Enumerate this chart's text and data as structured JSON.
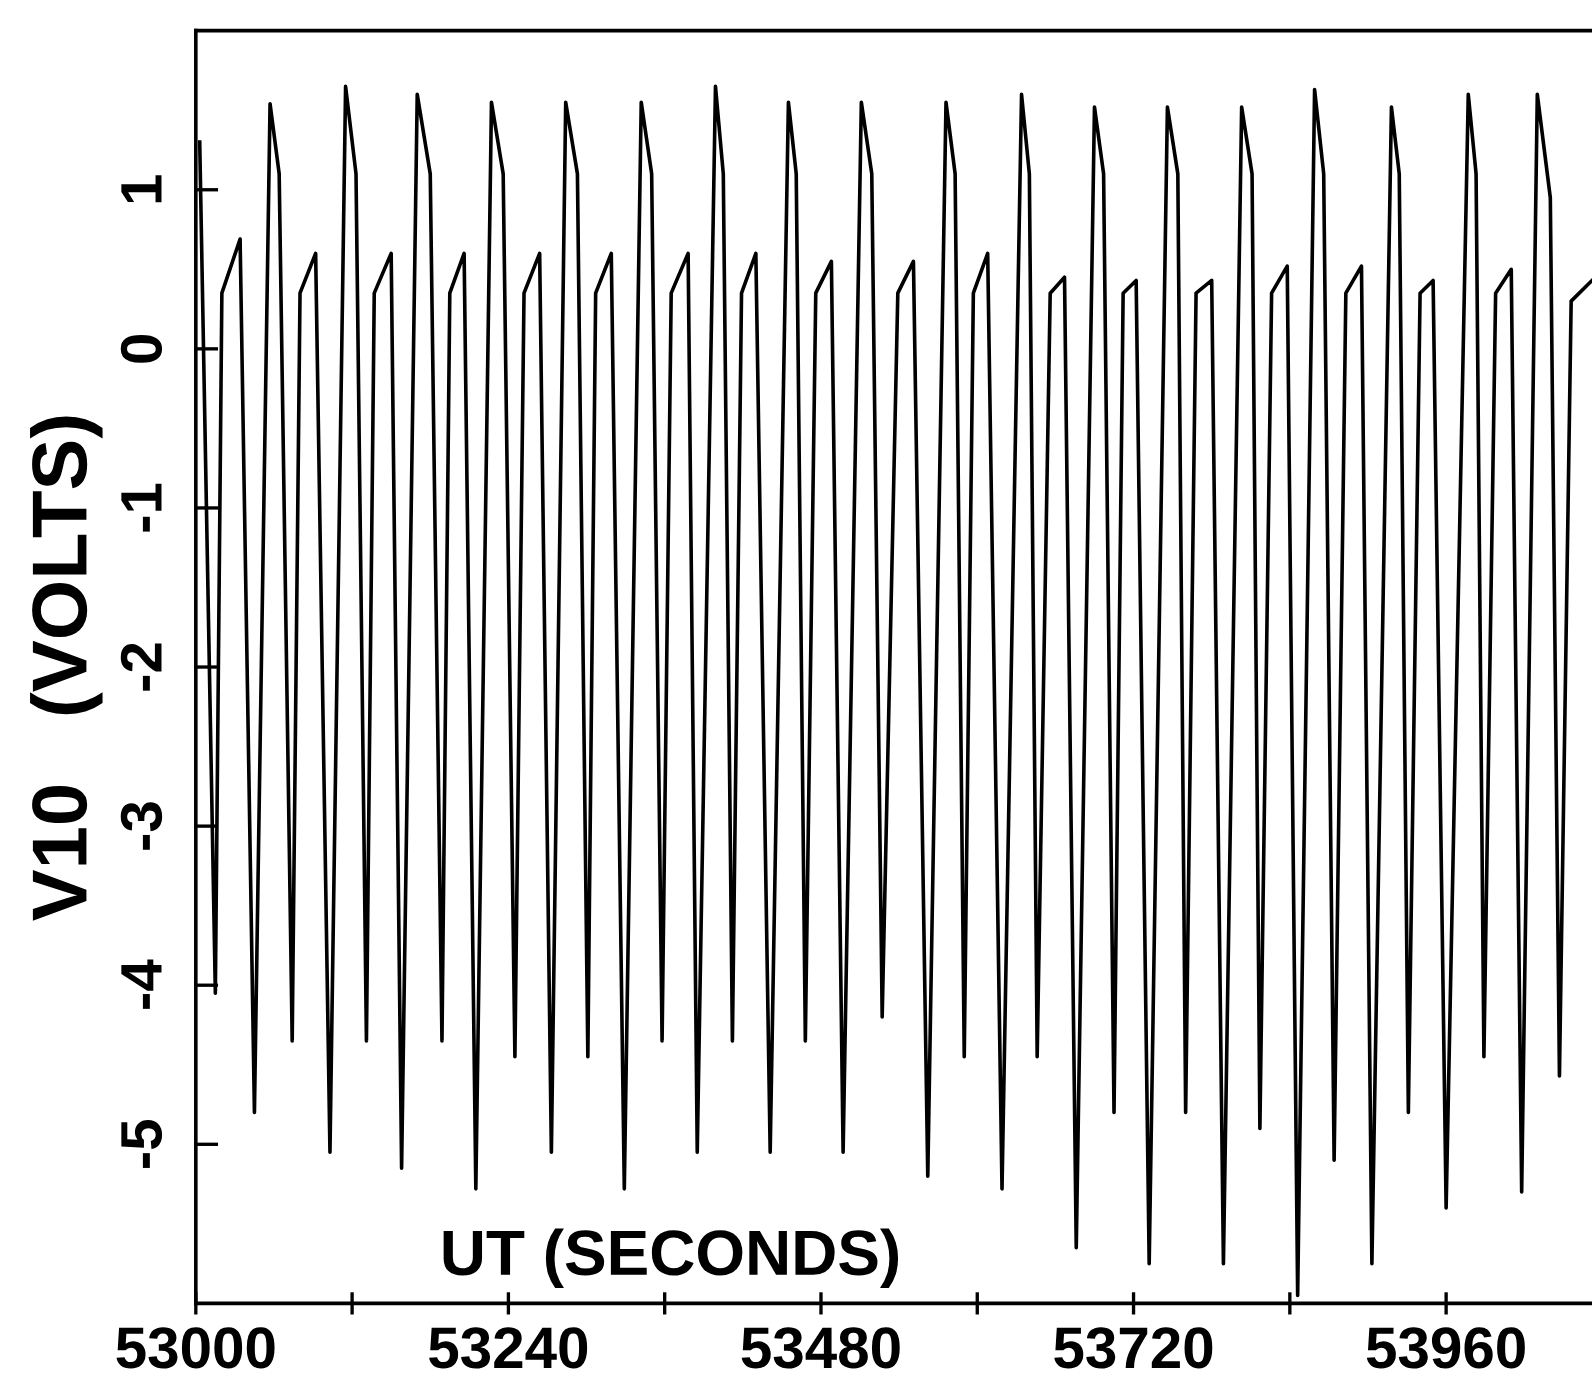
{
  "chart_data": {
    "type": "line",
    "xlabel": "UT (SECONDS)",
    "ylabel": "V10   (VOLTS)",
    "xlim": [
      53000,
      54072
    ],
    "ylim": [
      -6,
      2
    ],
    "xticks": [
      53000,
      {
        "value": 53120,
        "label": null
      },
      53240,
      {
        "value": 53360,
        "label": null
      },
      53480,
      {
        "value": 53600,
        "label": null
      },
      53720,
      {
        "value": 53840,
        "label": null
      },
      53960
    ],
    "yticks": [
      -5,
      -4,
      -3,
      -2,
      -1,
      0,
      1
    ],
    "grid": false,
    "legend": false,
    "marker": "none",
    "line_style": "solid",
    "series": [
      {
        "color": "#000000",
        "x": [
          53003,
          53015,
          53020,
          53034,
          53045,
          53057,
          53064,
          53074,
          53080,
          53092,
          53103,
          53115,
          53123,
          53131,
          53137,
          53150,
          53158,
          53170,
          53180,
          53189,
          53195,
          53206,
          53215,
          53227,
          53236,
          53245,
          53252,
          53264,
          53273,
          53284,
          53293,
          53301,
          53307,
          53319,
          53329,
          53342,
          53350,
          53358,
          53365,
          53378,
          53385,
          53399,
          53405,
          53412,
          53419,
          53430,
          53441,
          53455,
          53461,
          53468,
          53476,
          53488,
          53497,
          53511,
          53519,
          53527,
          53539,
          53551,
          53562,
          53576,
          53583,
          53590,
          53597,
          53608,
          53619,
          53634,
          53640,
          53646,
          53656,
          53667,
          53676,
          53690,
          53697,
          53705,
          53712,
          53722,
          53732,
          53746,
          53754,
          53760,
          53768,
          53780,
          53789,
          53803,
          53811,
          53817,
          53826,
          53838,
          53846,
          53859,
          53866,
          53874,
          53883,
          53895,
          53903,
          53918,
          53924,
          53931,
          53940,
          53950,
          53960,
          53977,
          53983,
          53989,
          53998,
          54010,
          54018,
          54030,
          54040,
          54047,
          54056,
          54072
        ],
        "values": [
          1.3,
          -4.05,
          0.35,
          0.69,
          -4.8,
          1.54,
          1.1,
          -4.35,
          0.35,
          0.6,
          -5.05,
          1.65,
          1.1,
          -4.35,
          0.35,
          0.6,
          -5.15,
          1.6,
          1.1,
          -4.35,
          0.35,
          0.6,
          -5.28,
          1.55,
          1.1,
          -4.45,
          0.35,
          0.6,
          -5.05,
          1.55,
          1.1,
          -4.45,
          0.35,
          0.6,
          -5.28,
          1.55,
          1.1,
          -4.35,
          0.35,
          0.6,
          -5.05,
          1.65,
          1.1,
          -4.35,
          0.35,
          0.6,
          -5.05,
          1.55,
          1.1,
          -4.35,
          0.35,
          0.55,
          -5.05,
          1.55,
          1.1,
          -4.2,
          0.35,
          0.55,
          -5.2,
          1.55,
          1.1,
          -4.45,
          0.35,
          0.6,
          -5.28,
          1.6,
          1.1,
          -4.45,
          0.35,
          0.45,
          -5.65,
          1.52,
          1.1,
          -4.8,
          0.35,
          0.43,
          -5.75,
          1.52,
          1.1,
          -4.8,
          0.35,
          0.43,
          -5.75,
          1.52,
          1.1,
          -4.9,
          0.35,
          0.52,
          -5.95,
          1.63,
          1.1,
          -5.1,
          0.35,
          0.52,
          -5.75,
          1.52,
          1.1,
          -4.8,
          0.35,
          0.43,
          -5.4,
          1.6,
          1.1,
          -4.45,
          0.35,
          0.5,
          -5.3,
          1.6,
          0.95,
          -4.57,
          0.3,
          0.43
        ]
      }
    ]
  }
}
